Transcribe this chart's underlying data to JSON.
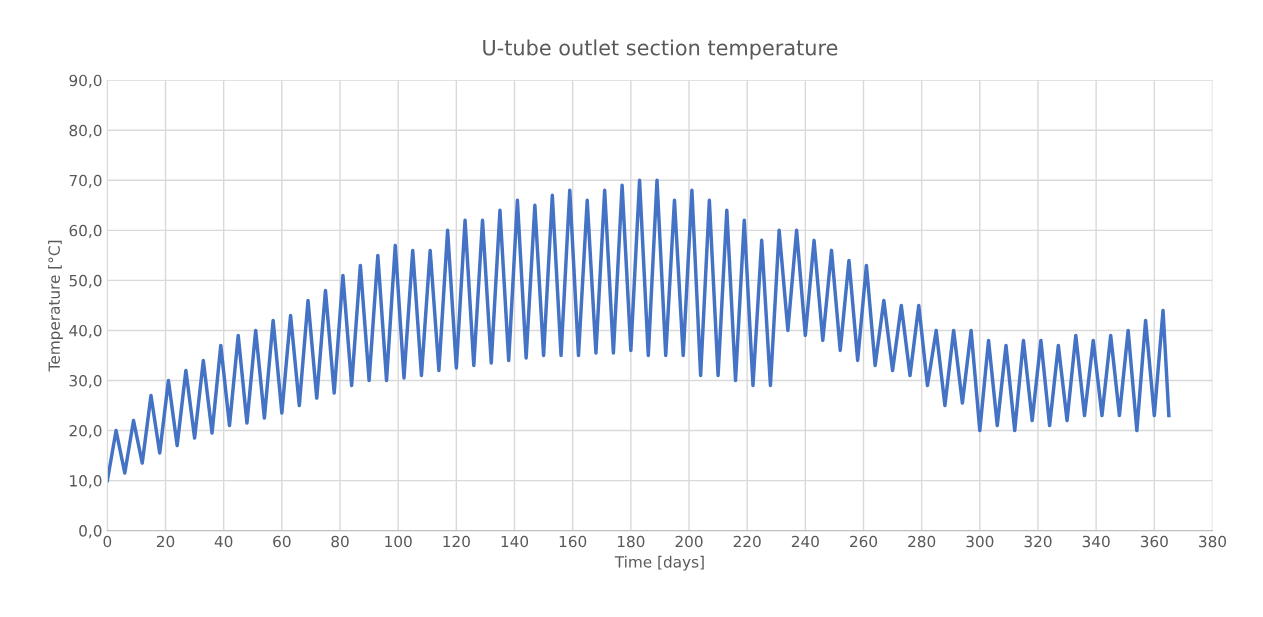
{
  "chart_data": {
    "type": "line",
    "title": "U-tube outlet section temperature",
    "xlabel": "Time [days]",
    "ylabel": "Temperature [°C]",
    "xlim": [
      0,
      380
    ],
    "xticks": [
      0,
      20,
      40,
      60,
      80,
      100,
      120,
      140,
      160,
      180,
      200,
      220,
      240,
      260,
      280,
      300,
      320,
      340,
      360,
      380
    ],
    "ylim": [
      0,
      90
    ],
    "yticks": [
      {
        "value": 0,
        "label": "0,0"
      },
      {
        "value": 10,
        "label": "10,0"
      },
      {
        "value": 20,
        "label": "20,0"
      },
      {
        "value": 30,
        "label": "30,0"
      },
      {
        "value": 40,
        "label": "40,0"
      },
      {
        "value": 50,
        "label": "50,0"
      },
      {
        "value": 60,
        "label": "60,0"
      },
      {
        "value": 70,
        "label": "70,0"
      },
      {
        "value": 80,
        "label": "80,0"
      },
      {
        "value": 90,
        "label": "90,0"
      }
    ],
    "grid": true,
    "series": [
      {
        "color": "#4472c4",
        "x": [
          0,
          3,
          6,
          9,
          12,
          15,
          18,
          21,
          24,
          27,
          30,
          33,
          36,
          39,
          42,
          45,
          48,
          51,
          54,
          57,
          60,
          63,
          66,
          69,
          72,
          75,
          78,
          81,
          84,
          87,
          90,
          93,
          96,
          99,
          102,
          105,
          108,
          111,
          114,
          117,
          120,
          123,
          126,
          129,
          132,
          135,
          138,
          141,
          144,
          147,
          150,
          153,
          156,
          159,
          162,
          165,
          168,
          171,
          174,
          177,
          180,
          183,
          186,
          189,
          192,
          195,
          198,
          201,
          204,
          207,
          210,
          213,
          216,
          219,
          222,
          225,
          228,
          231,
          234,
          237,
          240,
          243,
          246,
          249,
          252,
          255,
          258,
          261,
          264,
          267,
          270,
          273,
          276,
          279,
          282,
          285,
          288,
          291,
          294,
          297,
          300,
          303,
          306,
          309,
          312,
          315,
          318,
          321,
          324,
          327,
          330,
          333,
          336,
          339,
          342,
          345,
          348,
          351,
          354,
          357,
          360,
          363,
          365
        ],
        "values": [
          10,
          20,
          11.5,
          22,
          13.5,
          27,
          15.5,
          30,
          17,
          32,
          18.5,
          34,
          19.5,
          37,
          21,
          39,
          21.5,
          40,
          22.5,
          42,
          23.5,
          43,
          25,
          46,
          26.5,
          48,
          27.5,
          51,
          29,
          53,
          30,
          55,
          30,
          57,
          30.5,
          56,
          31,
          56,
          32,
          60,
          32.5,
          62,
          33,
          62,
          33.5,
          64,
          34,
          66,
          34.5,
          65,
          35,
          67,
          35,
          68,
          35,
          66,
          35.5,
          68,
          35.5,
          69,
          36,
          70,
          35,
          70,
          35,
          66,
          35,
          68,
          31,
          66,
          31,
          64,
          30,
          62,
          29,
          58,
          29,
          60,
          40,
          60,
          39,
          58,
          38,
          56,
          36,
          54,
          34,
          53,
          33,
          46,
          32,
          45,
          31,
          45,
          29,
          40,
          25,
          40,
          25.5,
          40,
          20,
          38,
          21,
          37,
          20,
          38,
          22,
          38,
          21,
          37,
          22,
          39,
          23,
          38,
          23,
          39,
          23,
          40,
          20,
          42,
          23,
          44,
          23
        ]
      }
    ]
  }
}
